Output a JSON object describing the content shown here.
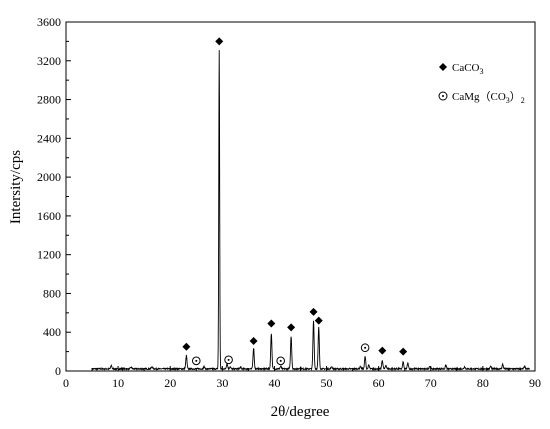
{
  "chart_data": {
    "type": "line",
    "title": "",
    "xlabel": "2θ/degree",
    "ylabel": "Intersity/cps",
    "xlim": [
      0,
      90
    ],
    "ylim": [
      0,
      3600
    ],
    "x_ticks": [
      0,
      10,
      20,
      30,
      40,
      50,
      60,
      70,
      80,
      90
    ],
    "y_ticks": [
      0,
      400,
      800,
      1200,
      1600,
      2000,
      2400,
      2800,
      3200,
      3600
    ],
    "grid": false,
    "legend_position": "top-right",
    "legend": [
      {
        "marker": "diamond",
        "label": "CaCO",
        "sub": "3",
        "suffix": ""
      },
      {
        "marker": "circle-dot",
        "label": "CaMg（CO",
        "sub": "3",
        "suffix": "）",
        "sub2": "2"
      }
    ],
    "series": [
      {
        "baseline": 22,
        "x_range": [
          5,
          89
        ],
        "peaks": [
          {
            "x": 8.7,
            "y": 55
          },
          {
            "x": 12.5,
            "y": 40
          },
          {
            "x": 16.5,
            "y": 45
          },
          {
            "x": 23.1,
            "y": 160
          },
          {
            "x": 26.5,
            "y": 45
          },
          {
            "x": 29.4,
            "y": 3310
          },
          {
            "x": 30.9,
            "y": 80
          },
          {
            "x": 31.5,
            "y": 45
          },
          {
            "x": 33.5,
            "y": 40
          },
          {
            "x": 36.0,
            "y": 240
          },
          {
            "x": 39.4,
            "y": 390
          },
          {
            "x": 41.2,
            "y": 50
          },
          {
            "x": 43.2,
            "y": 360
          },
          {
            "x": 45.0,
            "y": 40
          },
          {
            "x": 47.5,
            "y": 520
          },
          {
            "x": 48.5,
            "y": 450
          },
          {
            "x": 51.0,
            "y": 45
          },
          {
            "x": 56.5,
            "y": 50
          },
          {
            "x": 57.4,
            "y": 150
          },
          {
            "x": 58.1,
            "y": 60
          },
          {
            "x": 60.7,
            "y": 110
          },
          {
            "x": 61.4,
            "y": 60
          },
          {
            "x": 64.7,
            "y": 90
          },
          {
            "x": 65.6,
            "y": 80
          },
          {
            "x": 69.8,
            "y": 50
          },
          {
            "x": 72.9,
            "y": 60
          },
          {
            "x": 76.5,
            "y": 45
          },
          {
            "x": 81.5,
            "y": 50
          },
          {
            "x": 83.8,
            "y": 70
          },
          {
            "x": 88.0,
            "y": 45
          }
        ]
      }
    ],
    "markers": [
      {
        "type": "diamond",
        "x": 23.1,
        "y": 250
      },
      {
        "type": "circle-dot",
        "x": 25.0,
        "y": 105
      },
      {
        "type": "diamond",
        "x": 29.4,
        "y": 3400
      },
      {
        "type": "circle-dot",
        "x": 31.2,
        "y": 115
      },
      {
        "type": "diamond",
        "x": 36.0,
        "y": 310
      },
      {
        "type": "diamond",
        "x": 39.4,
        "y": 490
      },
      {
        "type": "circle-dot",
        "x": 41.2,
        "y": 105
      },
      {
        "type": "diamond",
        "x": 43.2,
        "y": 450
      },
      {
        "type": "diamond",
        "x": 47.5,
        "y": 610
      },
      {
        "type": "diamond",
        "x": 48.5,
        "y": 520
      },
      {
        "type": "circle-dot",
        "x": 57.4,
        "y": 240
      },
      {
        "type": "diamond",
        "x": 60.7,
        "y": 210
      },
      {
        "type": "diamond",
        "x": 64.7,
        "y": 200
      }
    ]
  }
}
